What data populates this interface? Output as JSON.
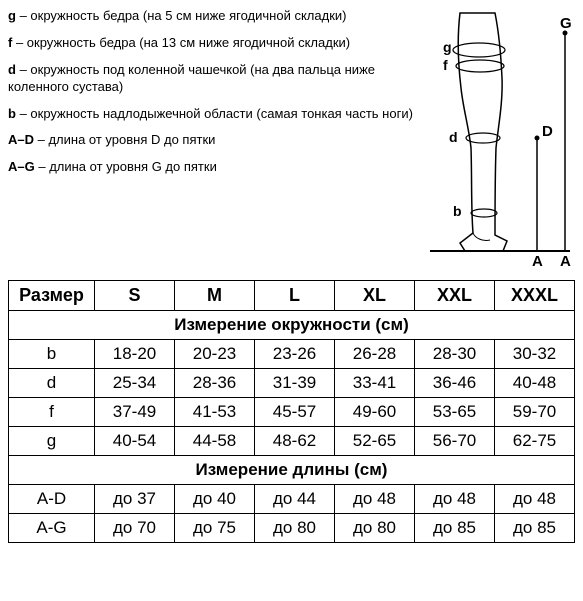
{
  "definitions": [
    {
      "key": "g",
      "text": " – окружность бедра (на 5 см ниже ягодичной складки)"
    },
    {
      "key": "f",
      "text": " – окружность бедра (на 13 см ниже ягодичной складки)"
    },
    {
      "key": "d",
      "text": " – окружность под коленной чашечкой (на два пальца ниже коленного сустава)"
    },
    {
      "key": "b",
      "text": " – окружность надлодыжечной области (самая тонкая часть ноги)"
    },
    {
      "key": "A–D",
      "text": " – длина от уровня D до пятки"
    },
    {
      "key": "A–G",
      "text": " – длина от уровня G до пятки"
    }
  ],
  "diagram_labels": {
    "g": "g",
    "f": "f",
    "d": "d",
    "b": "b",
    "G": "G",
    "D": "D",
    "A1": "A",
    "A2": "A"
  },
  "table": {
    "header": [
      "Размер",
      "S",
      "M",
      "L",
      "XL",
      "XXL",
      "XXXL"
    ],
    "section1_title": "Измерение окружности (см)",
    "section1_rows": [
      {
        "label": "b",
        "cells": [
          "18-20",
          "20-23",
          "23-26",
          "26-28",
          "28-30",
          "30-32"
        ]
      },
      {
        "label": "d",
        "cells": [
          "25-34",
          "28-36",
          "31-39",
          "33-41",
          "36-46",
          "40-48"
        ]
      },
      {
        "label": "f",
        "cells": [
          "37-49",
          "41-53",
          "45-57",
          "49-60",
          "53-65",
          "59-70"
        ]
      },
      {
        "label": "g",
        "cells": [
          "40-54",
          "44-58",
          "48-62",
          "52-65",
          "56-70",
          "62-75"
        ]
      }
    ],
    "section2_title": "Измерение длины (см)",
    "section2_rows": [
      {
        "label": "A-D",
        "cells": [
          "до 37",
          "до 40",
          "до 44",
          "до 48",
          "до 48",
          "до 48"
        ]
      },
      {
        "label": "A-G",
        "cells": [
          "до 70",
          "до 75",
          "до 80",
          "до 80",
          "до 85",
          "до 85"
        ]
      }
    ]
  },
  "colors": {
    "stroke": "#000000",
    "bg": "#ffffff"
  }
}
